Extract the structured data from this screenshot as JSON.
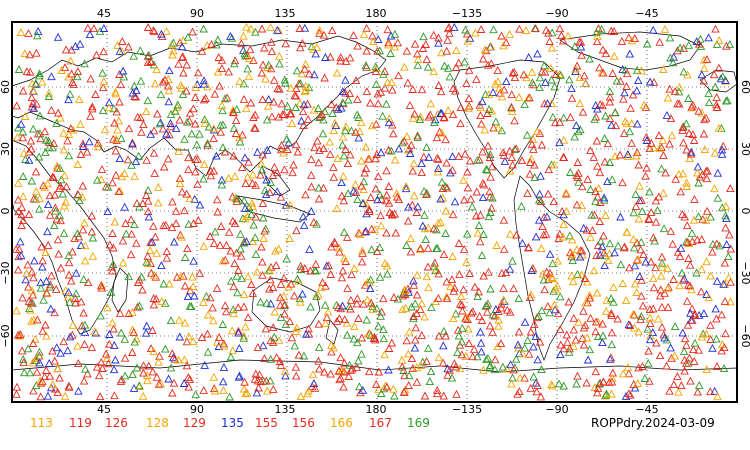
{
  "map": {
    "top_lon_ticks": [
      "45",
      "90",
      "135",
      "180",
      "−135",
      "−90",
      "−45"
    ],
    "bottom_lon_ticks": [
      "45",
      "90",
      "135",
      "180",
      "−135",
      "−90",
      "−45"
    ],
    "left_lat_ticks": [
      "60",
      "30",
      "0",
      "−30",
      "−60"
    ],
    "right_lat_ticks": [
      "60",
      "30",
      "0",
      "−30",
      "−60"
    ],
    "marker_shape": "triangle-outline",
    "colors": {
      "orange": "#f5a400",
      "red": "#e52b1d",
      "blue": "#1c2fd6",
      "green": "#2e9a28",
      "coast": "#000000",
      "grid": "#000000"
    }
  },
  "legend": [
    {
      "value": "113",
      "color": "#f5a400"
    },
    {
      "value": "119",
      "color": "#e52b1d"
    },
    {
      "value": "126",
      "color": "#e52b1d"
    },
    {
      "value": "128",
      "color": "#f5a400"
    },
    {
      "value": "129",
      "color": "#e52b1d"
    },
    {
      "value": "135",
      "color": "#1c2fd6"
    },
    {
      "value": "155",
      "color": "#e52b1d"
    },
    {
      "value": "156",
      "color": "#e52b1d"
    },
    {
      "value": "166",
      "color": "#f5a400"
    },
    {
      "value": "167",
      "color": "#e52b1d"
    },
    {
      "value": "169",
      "color": "#2e9a28"
    }
  ],
  "caption": "ROPPdry.2024-03-09"
}
